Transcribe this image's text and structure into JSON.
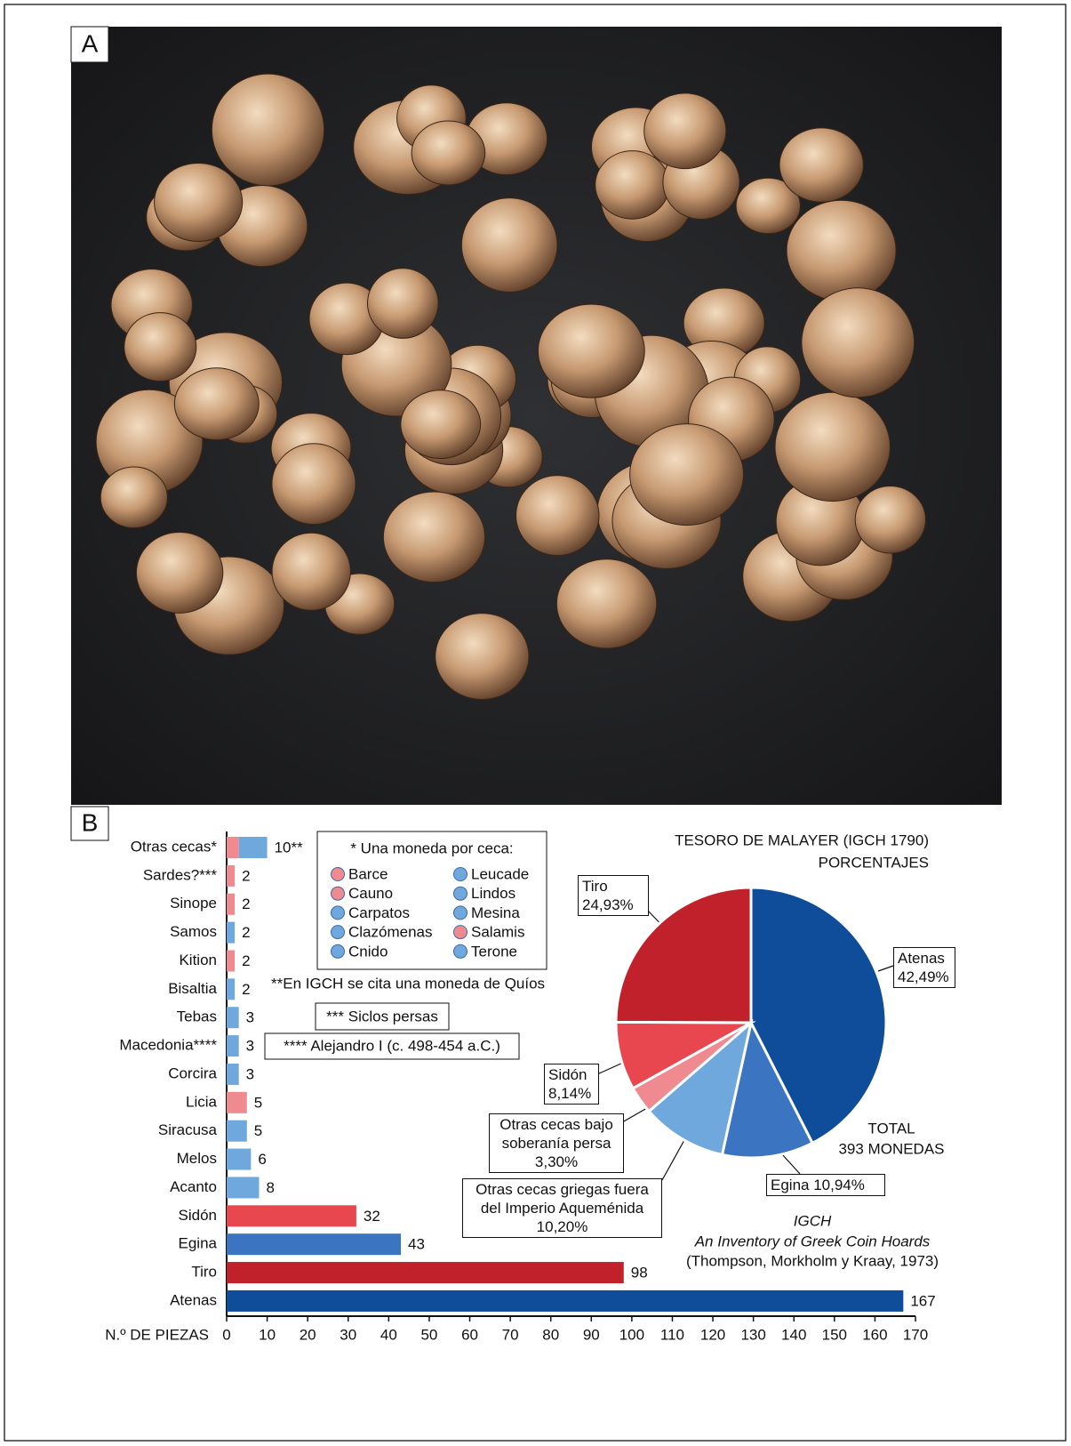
{
  "panels": {
    "a": "A",
    "b": "B"
  },
  "chart_data": [
    {
      "type": "bar",
      "orientation": "horizontal",
      "xlabel": "N.º DE PIEZAS",
      "xlim": [
        0,
        170
      ],
      "xticks": [
        0,
        10,
        20,
        30,
        40,
        50,
        60,
        70,
        80,
        90,
        100,
        110,
        120,
        130,
        140,
        150,
        160,
        170
      ],
      "bars": [
        {
          "category": "Otras cecas*",
          "value": 10,
          "value_label": "10**",
          "segments": [
            {
              "value": 3,
              "color": "#ef8a90"
            },
            {
              "value": 7,
              "color": "#6fa8dc"
            }
          ]
        },
        {
          "category": "Sardes?***",
          "value": 2,
          "color": "#ef8a90"
        },
        {
          "category": "Sinope",
          "value": 2,
          "color": "#ef8a90"
        },
        {
          "category": "Samos",
          "value": 2,
          "color": "#6fa8dc"
        },
        {
          "category": "Kition",
          "value": 2,
          "color": "#ef8a90"
        },
        {
          "category": "Bisaltia",
          "value": 2,
          "color": "#6fa8dc"
        },
        {
          "category": "Tebas",
          "value": 3,
          "color": "#6fa8dc"
        },
        {
          "category": "Macedonia****",
          "value": 3,
          "color": "#6fa8dc"
        },
        {
          "category": "Corcira",
          "value": 3,
          "color": "#6fa8dc"
        },
        {
          "category": "Licia",
          "value": 5,
          "color": "#ef8a90"
        },
        {
          "category": "Siracusa",
          "value": 5,
          "color": "#6fa8dc"
        },
        {
          "category": "Melos",
          "value": 6,
          "color": "#6fa8dc"
        },
        {
          "category": "Acanto",
          "value": 8,
          "color": "#6fa8dc"
        },
        {
          "category": "Sidón",
          "value": 32,
          "color": "#e8474f"
        },
        {
          "category": "Egina",
          "value": 43,
          "color": "#3b74c1"
        },
        {
          "category": "Tiro",
          "value": 98,
          "color": "#c0212a"
        },
        {
          "category": "Atenas",
          "value": 167,
          "color": "#0f4c9a"
        }
      ],
      "legend": {
        "title": "* Una moneda por ceca:",
        "items": [
          {
            "name": "Barce",
            "color": "#ef8a90"
          },
          {
            "name": "Cauno",
            "color": "#ef8a90"
          },
          {
            "name": "Carpatos",
            "color": "#6fa8dc"
          },
          {
            "name": "Clazómenas",
            "color": "#6fa8dc"
          },
          {
            "name": "Cnido",
            "color": "#6fa8dc"
          },
          {
            "name": "Leucade",
            "color": "#6fa8dc"
          },
          {
            "name": "Lindos",
            "color": "#6fa8dc"
          },
          {
            "name": "Mesina",
            "color": "#6fa8dc"
          },
          {
            "name": "Salamis",
            "color": "#ef8a90"
          },
          {
            "name": "Terone",
            "color": "#6fa8dc"
          }
        ]
      },
      "notes": [
        "**En IGCH se cita una moneda de Quíos",
        "*** Siclos persas",
        "**** Alejandro I (c. 498-454 a.C.)"
      ]
    },
    {
      "type": "pie",
      "title": "TESORO DE MALAYER (IGCH 1790)",
      "subtitle": "PORCENTAJES",
      "categories": [
        "Atenas",
        "Egina",
        "Otras cecas griegas fuera del Imperio Aqueménida",
        "Otras cecas bajo soberanía persa",
        "Sidón",
        "Tiro"
      ],
      "values": [
        42.49,
        10.94,
        10.2,
        3.3,
        8.14,
        24.93
      ],
      "value_labels": [
        "42,49%",
        "10,94%",
        "10,20%",
        "3,30%",
        "8,14%",
        "24,93%"
      ],
      "colors": [
        "#0f4c9a",
        "#3b74c1",
        "#6fa8dc",
        "#ef8a90",
        "#e8474f",
        "#c0212a"
      ],
      "annotations": [
        "TOTAL",
        "393 MONEDAS"
      ],
      "source": [
        "IGCH",
        "An Inventory of Greek Coin Hoards",
        "(Thompson, Morkholm y Kraay, 1973)"
      ]
    }
  ]
}
